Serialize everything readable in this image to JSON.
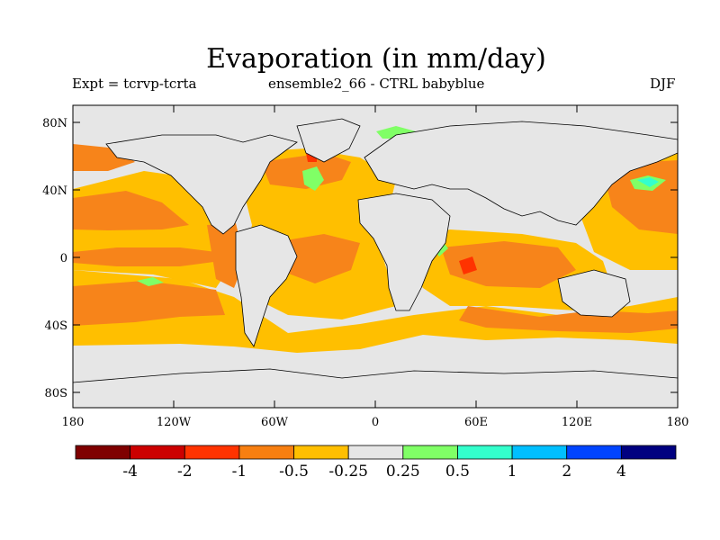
{
  "title": "Evaporation (in mm/day)",
  "subtitle_left": "Expt = tcrvp-tcrta",
  "subtitle_center": "ensemble2_66 - CTRL babyblue",
  "season": "DJF",
  "lat_labels": [
    "80N",
    "40N",
    "0",
    "40S",
    "80S"
  ],
  "lon_labels": [
    "180",
    "120W",
    "60W",
    "0",
    "60E",
    "120E",
    "180"
  ],
  "colorbar": {
    "labels": [
      "-4",
      "-2",
      "-1",
      "-0.5",
      "-0.25",
      "0.25",
      "0.5",
      "1",
      "2",
      "4"
    ],
    "colors": [
      "#7f0000",
      "#cc0000",
      "#ff3300",
      "#f77f11",
      "#ffbf00",
      "#e6e6e6",
      "#80ff66",
      "#33ffcc",
      "#00bfff",
      "#0044ff",
      "#000080"
    ]
  },
  "colors": {
    "ocean_land_bg": "#e6e6e6",
    "orange": "#f7841a",
    "yellow": "#ffbf00",
    "red": "#ff3300"
  }
}
